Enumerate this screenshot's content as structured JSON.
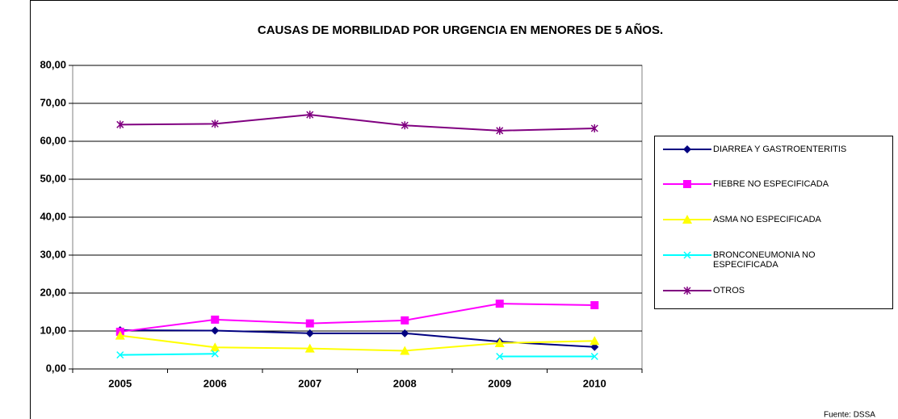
{
  "chart_data": {
    "type": "line",
    "title": "CAUSAS DE MORBILIDAD POR URGENCIA EN MENORES DE 5 AÑOS.",
    "categories": [
      "2005",
      "2006",
      "2007",
      "2008",
      "2009",
      "2010"
    ],
    "series": [
      {
        "name": "DIARREA Y GASTROENTERITIS",
        "color": "#000080",
        "marker": "diamond",
        "values": [
          10.2,
          10.1,
          9.4,
          9.4,
          7.2,
          5.8
        ]
      },
      {
        "name": "FIEBRE  NO ESPECIFICADA",
        "color": "#ff00ff",
        "marker": "square",
        "values": [
          9.8,
          13.0,
          12.0,
          12.8,
          17.2,
          16.8
        ]
      },
      {
        "name": "ASMA  NO ESPECIFICADA",
        "color": "#ffff00",
        "marker": "triangle",
        "values": [
          8.8,
          5.7,
          5.4,
          4.8,
          6.8,
          7.4
        ]
      },
      {
        "name": "BRONCONEUMONIA  NO ESPECIFICADA",
        "color": "#00ffff",
        "marker": "x",
        "values": [
          3.7,
          4.0,
          null,
          null,
          3.3,
          3.3
        ]
      },
      {
        "name": "OTROS",
        "color": "#800080",
        "marker": "star",
        "values": [
          64.4,
          64.6,
          67.0,
          64.2,
          62.8,
          63.4
        ]
      }
    ],
    "ylim": [
      0,
      80
    ],
    "yticks": [
      {
        "value": 0,
        "label": "0,00"
      },
      {
        "value": 10,
        "label": "10,00"
      },
      {
        "value": 20,
        "label": "20,00"
      },
      {
        "value": 30,
        "label": "30,00"
      },
      {
        "value": 40,
        "label": "40,00"
      },
      {
        "value": 50,
        "label": "50,00"
      },
      {
        "value": 60,
        "label": "60,00"
      },
      {
        "value": 70,
        "label": "70,00"
      },
      {
        "value": 80,
        "label": "80,00"
      }
    ],
    "grid": true,
    "legend": "right",
    "source": "Fuente:  DSSA"
  }
}
